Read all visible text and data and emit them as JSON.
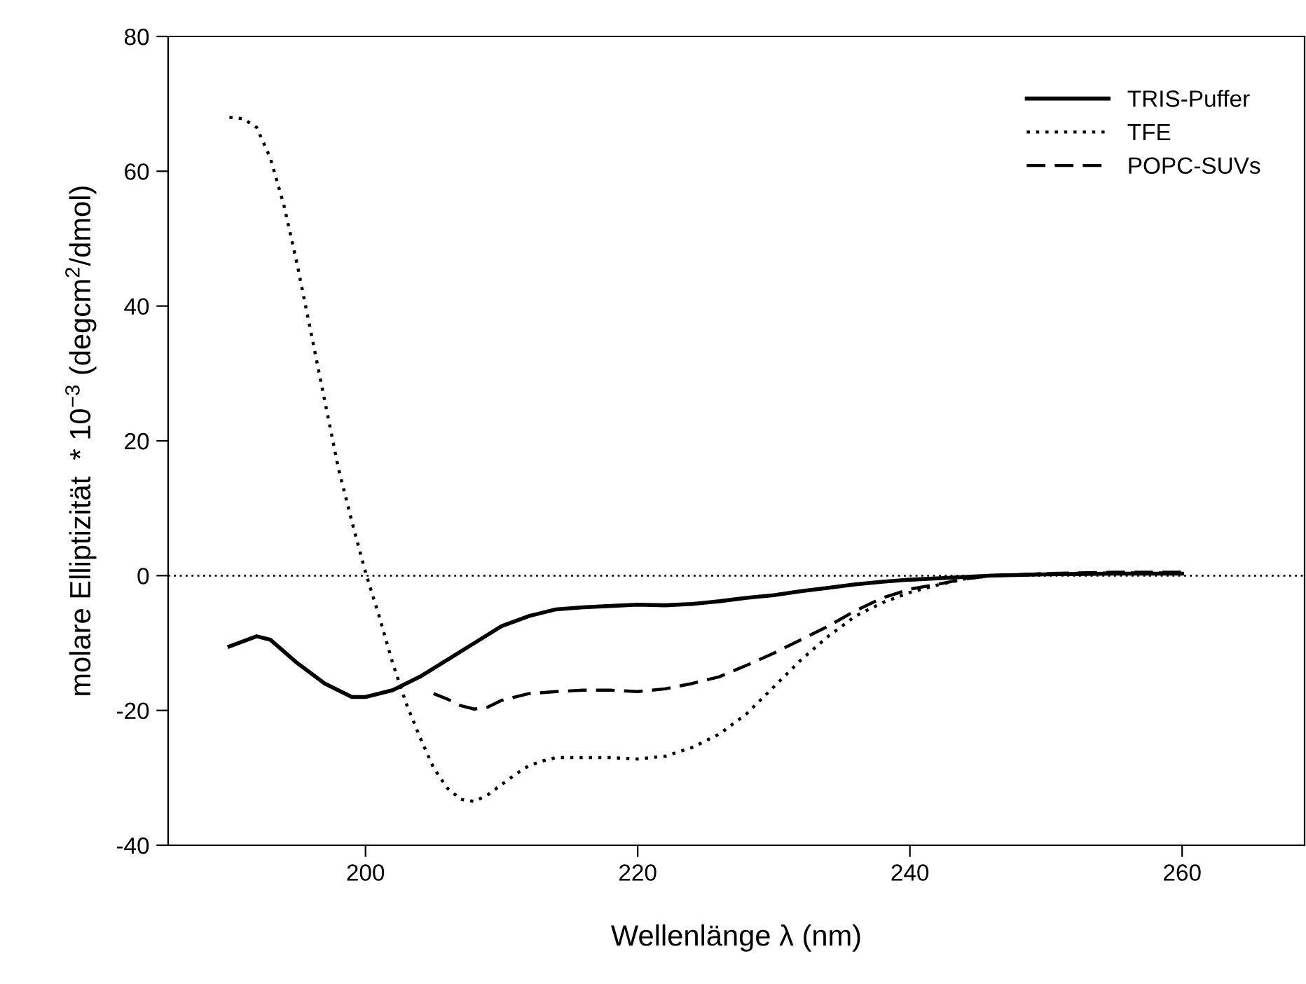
{
  "chart_data": {
    "type": "line",
    "xlabel": "Wellenlänge λ (nm)",
    "ylabel": "molare Elliptizität  * 10$^{−3}$ (degcm$^{2}$/dmol)",
    "xlim": [
      185.5,
      269
    ],
    "xticks": [
      200,
      220,
      240,
      260
    ],
    "ylim": [
      -40,
      80
    ],
    "yticks": [
      -40,
      -20,
      0,
      20,
      40,
      60,
      80
    ],
    "grid": false,
    "legend": "top right",
    "ref_lines": [
      {
        "axis": "y",
        "value": 0,
        "color": "#000000",
        "line_style": "dotted"
      }
    ],
    "series": [
      {
        "name": "TRIS-Puffer",
        "color": "#000000",
        "line_style": "solid",
        "x": [
          190,
          192,
          193,
          195,
          197,
          199,
          200,
          202,
          204,
          206,
          208,
          210,
          212,
          214,
          216,
          218,
          220,
          222,
          224,
          226,
          228,
          230,
          232,
          234,
          236,
          238,
          240,
          242,
          244,
          246,
          250,
          255,
          260
        ],
        "values": [
          -10.5,
          -9,
          -9.5,
          -13,
          -16,
          -18,
          -18,
          -17,
          -15,
          -12.5,
          -10,
          -7.5,
          -6,
          -5,
          -4.7,
          -4.5,
          -4.3,
          -4.4,
          -4.2,
          -3.8,
          -3.3,
          -2.9,
          -2.3,
          -1.8,
          -1.3,
          -0.9,
          -0.6,
          -0.4,
          -0.2,
          0,
          0.2,
          0.3,
          0.3
        ]
      },
      {
        "name": "TFE",
        "color": "#000000",
        "line_style": "dotted",
        "x": [
          190,
          191,
          192,
          193,
          194,
          195,
          196,
          197,
          198,
          199,
          200,
          201,
          202,
          203,
          204,
          205,
          206,
          207,
          208,
          209,
          210,
          211,
          212,
          213,
          214,
          216,
          218,
          220,
          222,
          224,
          226,
          228,
          230,
          232,
          234,
          236,
          238,
          240,
          242,
          244,
          246,
          250,
          255,
          260
        ],
        "values": [
          68,
          67.8,
          66.5,
          62,
          55,
          46,
          36,
          26,
          16,
          8,
          0.5,
          -6,
          -13,
          -19,
          -24,
          -28.5,
          -31.5,
          -33.2,
          -33.5,
          -32.5,
          -31,
          -29.5,
          -28.2,
          -27.5,
          -27,
          -27,
          -27,
          -27.2,
          -26.8,
          -25.5,
          -23.5,
          -20.5,
          -16.5,
          -12.5,
          -9,
          -6,
          -4,
          -2.5,
          -1.4,
          -0.5,
          0,
          0.3,
          0.4,
          0.4
        ]
      },
      {
        "name": "POPC-SUVs",
        "color": "#000000",
        "line_style": "dashed",
        "x": [
          205,
          206,
          207,
          208,
          209,
          210,
          212,
          214,
          216,
          218,
          220,
          222,
          224,
          226,
          228,
          230,
          232,
          234,
          236,
          238,
          240,
          242,
          244,
          246,
          250,
          255,
          260
        ],
        "values": [
          -17.5,
          -18.3,
          -19.3,
          -19.8,
          -19.5,
          -18.5,
          -17.5,
          -17.2,
          -17,
          -17,
          -17.2,
          -16.8,
          -16,
          -15,
          -13.3,
          -11.5,
          -9.5,
          -7.5,
          -5.2,
          -3.3,
          -2,
          -1.3,
          -0.5,
          0,
          0.3,
          0.5,
          0.5
        ]
      }
    ]
  }
}
